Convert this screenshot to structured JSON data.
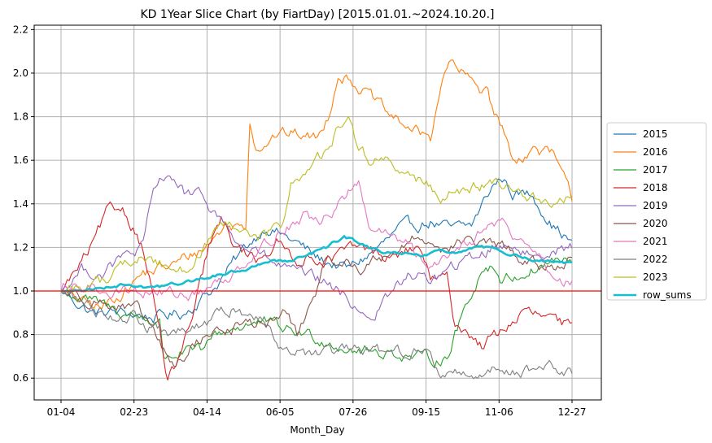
{
  "chart_data": {
    "type": "line",
    "title": "KD 1Year Slice Chart (by FiartDay) [2015.01.01.~2024.10.20.]",
    "xlabel": "Month_Day",
    "ylabel": "",
    "x_tick_labels": [
      "01-04",
      "02-23",
      "04-14",
      "06-05",
      "07-26",
      "09-15",
      "11-06",
      "12-27"
    ],
    "y_tick_labels": [
      "0.6",
      "0.8",
      "1.0",
      "1.2",
      "1.4",
      "1.6",
      "1.8",
      "2.0",
      "2.2"
    ],
    "y_ticks": [
      0.6,
      0.8,
      1.0,
      1.2,
      1.4,
      1.6,
      1.8,
      2.0,
      2.2
    ],
    "ylim": [
      0.5,
      2.22
    ],
    "x_points": 250,
    "reference_line": {
      "y": 1.0,
      "color": "#ff0000"
    },
    "grid": true,
    "legend_position": "right",
    "series": [
      {
        "name": "2015",
        "color": "#1f77b4",
        "anchors": [
          [
            0,
            1.0
          ],
          [
            15,
            0.9
          ],
          [
            30,
            0.9
          ],
          [
            45,
            0.88
          ],
          [
            60,
            0.9
          ],
          [
            75,
            1.02
          ],
          [
            90,
            1.2
          ],
          [
            100,
            1.3
          ],
          [
            115,
            1.22
          ],
          [
            125,
            1.15
          ],
          [
            140,
            1.1
          ],
          [
            155,
            1.2
          ],
          [
            165,
            1.28
          ],
          [
            180,
            1.32
          ],
          [
            190,
            1.28
          ],
          [
            200,
            1.3
          ],
          [
            210,
            1.48
          ],
          [
            215,
            1.52
          ],
          [
            220,
            1.45
          ],
          [
            230,
            1.44
          ],
          [
            240,
            1.3
          ],
          [
            249,
            1.22
          ]
        ]
      },
      {
        "name": "2016",
        "color": "#ff7f0e",
        "anchors": [
          [
            0,
            1.0
          ],
          [
            10,
            0.95
          ],
          [
            20,
            0.92
          ],
          [
            30,
            1.0
          ],
          [
            40,
            1.08
          ],
          [
            55,
            1.12
          ],
          [
            70,
            1.2
          ],
          [
            80,
            1.3
          ],
          [
            90,
            1.3
          ],
          [
            92,
            1.8
          ],
          [
            95,
            1.66
          ],
          [
            105,
            1.72
          ],
          [
            115,
            1.72
          ],
          [
            125,
            1.7
          ],
          [
            130,
            1.8
          ],
          [
            135,
            2.0
          ],
          [
            140,
            1.98
          ],
          [
            150,
            1.9
          ],
          [
            160,
            1.8
          ],
          [
            170,
            1.75
          ],
          [
            175,
            1.72
          ],
          [
            180,
            1.7
          ],
          [
            185,
            1.95
          ],
          [
            190,
            2.05
          ],
          [
            195,
            2.0
          ],
          [
            205,
            1.92
          ],
          [
            208,
            1.95
          ],
          [
            210,
            1.85
          ],
          [
            215,
            1.75
          ],
          [
            220,
            1.6
          ],
          [
            230,
            1.65
          ],
          [
            240,
            1.62
          ],
          [
            249,
            1.42
          ]
        ]
      },
      {
        "name": "2017",
        "color": "#2ca02c",
        "anchors": [
          [
            0,
            1.0
          ],
          [
            15,
            0.95
          ],
          [
            30,
            0.9
          ],
          [
            40,
            0.88
          ],
          [
            48,
            0.85
          ],
          [
            50,
            0.7
          ],
          [
            60,
            0.72
          ],
          [
            70,
            0.72
          ],
          [
            75,
            0.8
          ],
          [
            90,
            0.85
          ],
          [
            100,
            0.85
          ],
          [
            110,
            0.82
          ],
          [
            120,
            0.8
          ],
          [
            130,
            0.77
          ],
          [
            140,
            0.74
          ],
          [
            150,
            0.72
          ],
          [
            160,
            0.72
          ],
          [
            170,
            0.7
          ],
          [
            180,
            0.68
          ],
          [
            188,
            0.7
          ],
          [
            192,
            0.8
          ],
          [
            198,
            0.95
          ],
          [
            205,
            1.1
          ],
          [
            210,
            1.12
          ],
          [
            215,
            1.05
          ],
          [
            225,
            1.08
          ],
          [
            235,
            1.12
          ],
          [
            242,
            1.15
          ],
          [
            249,
            1.12
          ]
        ]
      },
      {
        "name": "2018",
        "color": "#d62728",
        "anchors": [
          [
            0,
            1.0
          ],
          [
            8,
            1.1
          ],
          [
            15,
            1.2
          ],
          [
            22,
            1.35
          ],
          [
            30,
            1.38
          ],
          [
            35,
            1.3
          ],
          [
            40,
            1.2
          ],
          [
            45,
            0.98
          ],
          [
            50,
            0.7
          ],
          [
            52,
            0.58
          ],
          [
            58,
            0.7
          ],
          [
            65,
            0.9
          ],
          [
            72,
            1.2
          ],
          [
            78,
            1.32
          ],
          [
            85,
            1.2
          ],
          [
            95,
            1.15
          ],
          [
            105,
            1.22
          ],
          [
            115,
            1.15
          ],
          [
            130,
            1.15
          ],
          [
            145,
            1.2
          ],
          [
            160,
            1.15
          ],
          [
            175,
            1.2
          ],
          [
            180,
            1.05
          ],
          [
            188,
            1.05
          ],
          [
            192,
            0.85
          ],
          [
            200,
            0.8
          ],
          [
            205,
            0.75
          ],
          [
            215,
            0.82
          ],
          [
            225,
            0.9
          ],
          [
            235,
            0.88
          ],
          [
            242,
            0.85
          ],
          [
            249,
            0.83
          ]
        ]
      },
      {
        "name": "2019",
        "color": "#9467bd",
        "anchors": [
          [
            0,
            1.0
          ],
          [
            10,
            1.1
          ],
          [
            20,
            1.08
          ],
          [
            30,
            1.15
          ],
          [
            40,
            1.2
          ],
          [
            45,
            1.45
          ],
          [
            52,
            1.55
          ],
          [
            60,
            1.45
          ],
          [
            70,
            1.42
          ],
          [
            80,
            1.3
          ],
          [
            88,
            1.2
          ],
          [
            95,
            1.18
          ],
          [
            105,
            1.12
          ],
          [
            115,
            1.08
          ],
          [
            125,
            1.05
          ],
          [
            135,
            1.0
          ],
          [
            145,
            0.92
          ],
          [
            152,
            0.88
          ],
          [
            160,
            0.98
          ],
          [
            170,
            1.08
          ],
          [
            180,
            1.05
          ],
          [
            190,
            1.1
          ],
          [
            200,
            1.15
          ],
          [
            210,
            1.2
          ],
          [
            220,
            1.22
          ],
          [
            230,
            1.15
          ],
          [
            240,
            1.2
          ],
          [
            249,
            1.2
          ]
        ]
      },
      {
        "name": "2020",
        "color": "#8c564b",
        "anchors": [
          [
            0,
            1.0
          ],
          [
            10,
            0.98
          ],
          [
            20,
            0.95
          ],
          [
            30,
            0.92
          ],
          [
            38,
            0.9
          ],
          [
            45,
            0.82
          ],
          [
            50,
            0.72
          ],
          [
            55,
            0.65
          ],
          [
            60,
            0.7
          ],
          [
            70,
            0.8
          ],
          [
            80,
            0.82
          ],
          [
            90,
            0.85
          ],
          [
            100,
            0.85
          ],
          [
            110,
            0.9
          ],
          [
            115,
            0.8
          ],
          [
            120,
            0.9
          ],
          [
            128,
            1.1
          ],
          [
            135,
            1.15
          ],
          [
            145,
            1.1
          ],
          [
            155,
            1.15
          ],
          [
            165,
            1.2
          ],
          [
            175,
            1.25
          ],
          [
            185,
            1.2
          ],
          [
            195,
            1.22
          ],
          [
            205,
            1.22
          ],
          [
            215,
            1.2
          ],
          [
            225,
            1.15
          ],
          [
            235,
            1.1
          ],
          [
            249,
            1.15
          ]
        ]
      },
      {
        "name": "2021",
        "color": "#e377c2",
        "anchors": [
          [
            0,
            1.0
          ],
          [
            15,
            1.02
          ],
          [
            30,
            1.0
          ],
          [
            45,
            1.0
          ],
          [
            60,
            0.98
          ],
          [
            70,
            1.0
          ],
          [
            80,
            1.05
          ],
          [
            90,
            1.15
          ],
          [
            100,
            1.22
          ],
          [
            110,
            1.3
          ],
          [
            118,
            1.35
          ],
          [
            125,
            1.3
          ],
          [
            130,
            1.35
          ],
          [
            140,
            1.45
          ],
          [
            145,
            1.48
          ],
          [
            150,
            1.3
          ],
          [
            160,
            1.25
          ],
          [
            170,
            1.2
          ],
          [
            178,
            1.1
          ],
          [
            185,
            1.15
          ],
          [
            195,
            1.22
          ],
          [
            205,
            1.28
          ],
          [
            215,
            1.32
          ],
          [
            220,
            1.25
          ],
          [
            230,
            1.2
          ],
          [
            240,
            1.05
          ],
          [
            249,
            1.05
          ]
        ]
      },
      {
        "name": "2022",
        "color": "#7f7f7f",
        "anchors": [
          [
            0,
            1.0
          ],
          [
            10,
            0.95
          ],
          [
            20,
            0.9
          ],
          [
            35,
            0.88
          ],
          [
            45,
            0.82
          ],
          [
            55,
            0.8
          ],
          [
            65,
            0.82
          ],
          [
            75,
            0.88
          ],
          [
            85,
            0.92
          ],
          [
            95,
            0.88
          ],
          [
            102,
            0.85
          ],
          [
            108,
            0.75
          ],
          [
            115,
            0.72
          ],
          [
            125,
            0.7
          ],
          [
            135,
            0.72
          ],
          [
            145,
            0.72
          ],
          [
            155,
            0.72
          ],
          [
            165,
            0.72
          ],
          [
            175,
            0.74
          ],
          [
            180,
            0.7
          ],
          [
            185,
            0.62
          ],
          [
            195,
            0.62
          ],
          [
            205,
            0.63
          ],
          [
            215,
            0.64
          ],
          [
            225,
            0.64
          ],
          [
            235,
            0.65
          ],
          [
            245,
            0.63
          ],
          [
            249,
            0.62
          ]
        ]
      },
      {
        "name": "2023",
        "color": "#bcbd22",
        "anchors": [
          [
            0,
            1.0
          ],
          [
            10,
            1.02
          ],
          [
            20,
            1.05
          ],
          [
            30,
            1.12
          ],
          [
            40,
            1.15
          ],
          [
            50,
            1.12
          ],
          [
            60,
            1.1
          ],
          [
            70,
            1.2
          ],
          [
            80,
            1.3
          ],
          [
            90,
            1.25
          ],
          [
            100,
            1.25
          ],
          [
            108,
            1.3
          ],
          [
            112,
            1.5
          ],
          [
            120,
            1.55
          ],
          [
            128,
            1.62
          ],
          [
            135,
            1.75
          ],
          [
            140,
            1.8
          ],
          [
            145,
            1.65
          ],
          [
            150,
            1.6
          ],
          [
            155,
            1.62
          ],
          [
            165,
            1.55
          ],
          [
            175,
            1.5
          ],
          [
            185,
            1.45
          ],
          [
            195,
            1.45
          ],
          [
            205,
            1.48
          ],
          [
            215,
            1.48
          ],
          [
            225,
            1.45
          ],
          [
            235,
            1.42
          ],
          [
            242,
            1.38
          ],
          [
            249,
            1.44
          ]
        ]
      },
      {
        "name": "row_sums",
        "color": "#17becf",
        "thick": true,
        "anchors": [
          [
            0,
            1.0
          ],
          [
            10,
            1.0
          ],
          [
            20,
            1.02
          ],
          [
            30,
            1.03
          ],
          [
            40,
            1.02
          ],
          [
            50,
            1.02
          ],
          [
            60,
            1.04
          ],
          [
            70,
            1.06
          ],
          [
            80,
            1.08
          ],
          [
            90,
            1.1
          ],
          [
            100,
            1.14
          ],
          [
            110,
            1.14
          ],
          [
            120,
            1.16
          ],
          [
            130,
            1.2
          ],
          [
            138,
            1.25
          ],
          [
            145,
            1.22
          ],
          [
            155,
            1.18
          ],
          [
            165,
            1.17
          ],
          [
            175,
            1.16
          ],
          [
            185,
            1.18
          ],
          [
            195,
            1.18
          ],
          [
            205,
            1.2
          ],
          [
            215,
            1.19
          ],
          [
            225,
            1.15
          ],
          [
            235,
            1.14
          ],
          [
            249,
            1.12
          ]
        ]
      }
    ]
  }
}
